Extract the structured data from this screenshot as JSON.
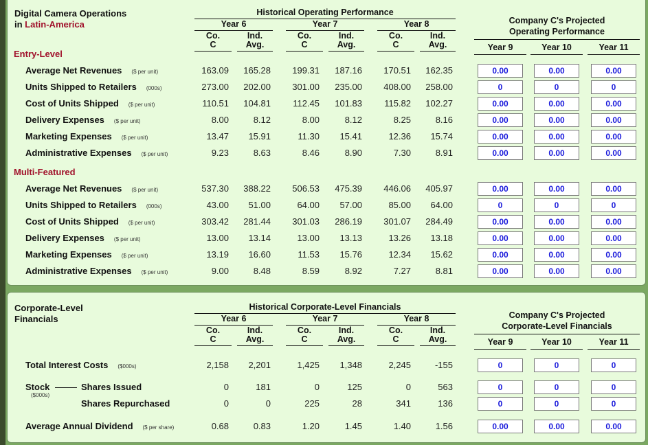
{
  "operations": {
    "title_line1": "Digital Camera Operations",
    "title_prefix": "in ",
    "region": "Latin-America",
    "historical_header": "Historical Operating Performance",
    "projected_header_line1": "Company C's Projected",
    "projected_header_line2": "Operating Performance",
    "years": [
      "Year 6",
      "Year 7",
      "Year 8"
    ],
    "sub_cols": [
      "Co.\nC",
      "Ind.\nAvg."
    ],
    "projected_years": [
      "Year 9",
      "Year 10",
      "Year 11"
    ],
    "sections": [
      {
        "name": "Entry-Level",
        "rows": [
          {
            "label": "Average Net Revenues",
            "unit": "($ per unit)",
            "values": [
              "163.09",
              "165.28",
              "199.31",
              "187.16",
              "170.51",
              "162.35"
            ],
            "inputs": [
              "0.00",
              "0.00",
              "0.00"
            ]
          },
          {
            "label": "Units Shipped to Retailers",
            "unit": "(000s)",
            "values": [
              "273.00",
              "202.00",
              "301.00",
              "235.00",
              "408.00",
              "258.00"
            ],
            "inputs": [
              "0",
              "0",
              "0"
            ]
          },
          {
            "label": "Cost of Units Shipped",
            "unit": "($ per unit)",
            "values": [
              "110.51",
              "104.81",
              "112.45",
              "101.83",
              "115.82",
              "102.27"
            ],
            "inputs": [
              "0.00",
              "0.00",
              "0.00"
            ]
          },
          {
            "label": "Delivery Expenses",
            "unit": "($ per unit)",
            "values": [
              "8.00",
              "8.12",
              "8.00",
              "8.12",
              "8.25",
              "8.16"
            ],
            "inputs": [
              "0.00",
              "0.00",
              "0.00"
            ]
          },
          {
            "label": "Marketing Expenses",
            "unit": "($ per unit)",
            "values": [
              "13.47",
              "15.91",
              "11.30",
              "15.41",
              "12.36",
              "15.74"
            ],
            "inputs": [
              "0.00",
              "0.00",
              "0.00"
            ]
          },
          {
            "label": "Administrative Expenses",
            "unit": "($ per unit)",
            "values": [
              "9.23",
              "8.63",
              "8.46",
              "8.90",
              "7.30",
              "8.91"
            ],
            "inputs": [
              "0.00",
              "0.00",
              "0.00"
            ]
          }
        ]
      },
      {
        "name": "Multi-Featured",
        "rows": [
          {
            "label": "Average Net Revenues",
            "unit": "($ per unit)",
            "values": [
              "537.30",
              "388.22",
              "506.53",
              "475.39",
              "446.06",
              "405.97"
            ],
            "inputs": [
              "0.00",
              "0.00",
              "0.00"
            ]
          },
          {
            "label": "Units Shipped to Retailers",
            "unit": "(000s)",
            "values": [
              "43.00",
              "51.00",
              "64.00",
              "57.00",
              "85.00",
              "64.00"
            ],
            "inputs": [
              "0",
              "0",
              "0"
            ]
          },
          {
            "label": "Cost of Units Shipped",
            "unit": "($ per unit)",
            "values": [
              "303.42",
              "281.44",
              "301.03",
              "286.19",
              "301.07",
              "284.49"
            ],
            "inputs": [
              "0.00",
              "0.00",
              "0.00"
            ]
          },
          {
            "label": "Delivery Expenses",
            "unit": "($ per unit)",
            "values": [
              "13.00",
              "13.14",
              "13.00",
              "13.13",
              "13.26",
              "13.18"
            ],
            "inputs": [
              "0.00",
              "0.00",
              "0.00"
            ]
          },
          {
            "label": "Marketing Expenses",
            "unit": "($ per unit)",
            "values": [
              "13.19",
              "16.60",
              "11.53",
              "15.76",
              "12.34",
              "15.62"
            ],
            "inputs": [
              "0.00",
              "0.00",
              "0.00"
            ]
          },
          {
            "label": "Administrative Expenses",
            "unit": "($ per unit)",
            "values": [
              "9.00",
              "8.48",
              "8.59",
              "8.92",
              "7.27",
              "8.81"
            ],
            "inputs": [
              "0.00",
              "0.00",
              "0.00"
            ]
          }
        ]
      }
    ]
  },
  "corporate": {
    "title_line1": "Corporate-Level",
    "title_line2": "Financials",
    "historical_header": "Historical Corporate-Level Financials",
    "projected_header_line1": "Company C's Projected",
    "projected_header_line2": "Corporate-Level Financials",
    "stock_label": "Stock",
    "stock_unit": "($000s)",
    "rows": [
      {
        "label": "Total Interest Costs",
        "unit": "($000s)",
        "values": [
          "2,158",
          "2,201",
          "1,425",
          "1,348",
          "2,245",
          "-155"
        ],
        "inputs": [
          "0",
          "0",
          "0"
        ]
      },
      {
        "label": "Shares Issued",
        "unit": "",
        "values": [
          "0",
          "181",
          "0",
          "125",
          "0",
          "563"
        ],
        "inputs": [
          "0",
          "0",
          "0"
        ]
      },
      {
        "label": "Shares Repurchased",
        "unit": "",
        "values": [
          "0",
          "0",
          "225",
          "28",
          "341",
          "136"
        ],
        "inputs": [
          "0",
          "0",
          "0"
        ]
      },
      {
        "label": "Average Annual Dividend",
        "unit": "($ per share)",
        "values": [
          "0.68",
          "0.83",
          "1.20",
          "1.45",
          "1.40",
          "1.56"
        ],
        "inputs": [
          "0.00",
          "0.00",
          "0.00"
        ]
      }
    ]
  },
  "colors": {
    "accent_red": "#a0102a",
    "input_text": "#1a1adb",
    "panel": "#e8fbdc",
    "background": "#7ba862"
  }
}
